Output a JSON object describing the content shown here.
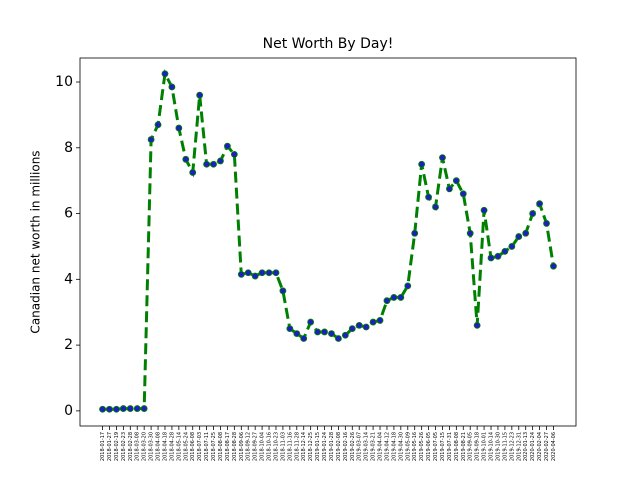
{
  "chart_data": {
    "type": "line",
    "title": "Net Worth By Day!",
    "y_label": "Canadian net worth in millions",
    "categories": [
      "2018-01-17",
      "2018-01-27",
      "2018-02-19",
      "2018-02-23",
      "2018-02-28",
      "2018-03-08",
      "2018-03-20",
      "2018-03-30",
      "2018-04-08",
      "2018-04-18",
      "2018-04-28",
      "2018-05-14",
      "2018-05-24",
      "2018-06-08",
      "2018-07-03",
      "2018-07-11",
      "2018-07-25",
      "2018-08-08",
      "2018-08-17",
      "2018-08-28",
      "2018-09-06",
      "2018-09-12",
      "2018-09-27",
      "2018-10-04",
      "2018-10-16",
      "2018-10-23",
      "2018-11-03",
      "2018-11-16",
      "2018-11-28",
      "2018-12-14",
      "2018-12-25",
      "2019-01-15",
      "2019-01-24",
      "2019-01-28",
      "2019-02-08",
      "2019-02-16",
      "2019-02-26",
      "2019-03-07",
      "2019-03-14",
      "2019-03-21",
      "2019-04-04",
      "2019-04-12",
      "2019-04-18",
      "2019-04-30",
      "2019-05-09",
      "2019-05-16",
      "2019-05-26",
      "2019-06-05",
      "2019-07-05",
      "2019-07-15",
      "2019-07-31",
      "2019-08-08",
      "2019-08-21",
      "2019-09-05",
      "2019-09-18",
      "2019-10-01",
      "2019-10-14",
      "2019-10-30",
      "2019-11-15",
      "2019-12-23",
      "2019-12-31",
      "2020-01-13",
      "2020-01-24",
      "2020-02-04",
      "2020-02-27",
      "2020-04-06"
    ],
    "values": [
      0.05,
      0.05,
      0.05,
      0.07,
      0.07,
      0.07,
      0.07,
      8.25,
      8.7,
      10.25,
      9.85,
      8.6,
      7.65,
      7.25,
      9.6,
      7.5,
      7.5,
      7.6,
      8.05,
      7.8,
      4.15,
      4.2,
      4.1,
      4.2,
      4.2,
      4.2,
      3.65,
      2.5,
      2.35,
      2.2,
      2.7,
      2.4,
      2.4,
      2.35,
      2.2,
      2.3,
      2.5,
      2.6,
      2.55,
      2.7,
      2.75,
      3.35,
      3.45,
      3.45,
      3.8,
      5.4,
      7.5,
      6.5,
      6.2,
      7.7,
      6.75,
      7.0,
      6.6,
      5.4,
      2.6,
      6.1,
      4.65,
      4.7,
      4.85,
      5.0,
      5.3,
      5.4,
      6.0,
      6.3,
      5.7,
      4.4
    ],
    "color": "#008000",
    "marker_color": "#1f1fbf",
    "ylim": [
      -0.46,
      10.73
    ],
    "yticks": [
      0,
      2,
      4,
      6,
      8,
      10
    ]
  }
}
